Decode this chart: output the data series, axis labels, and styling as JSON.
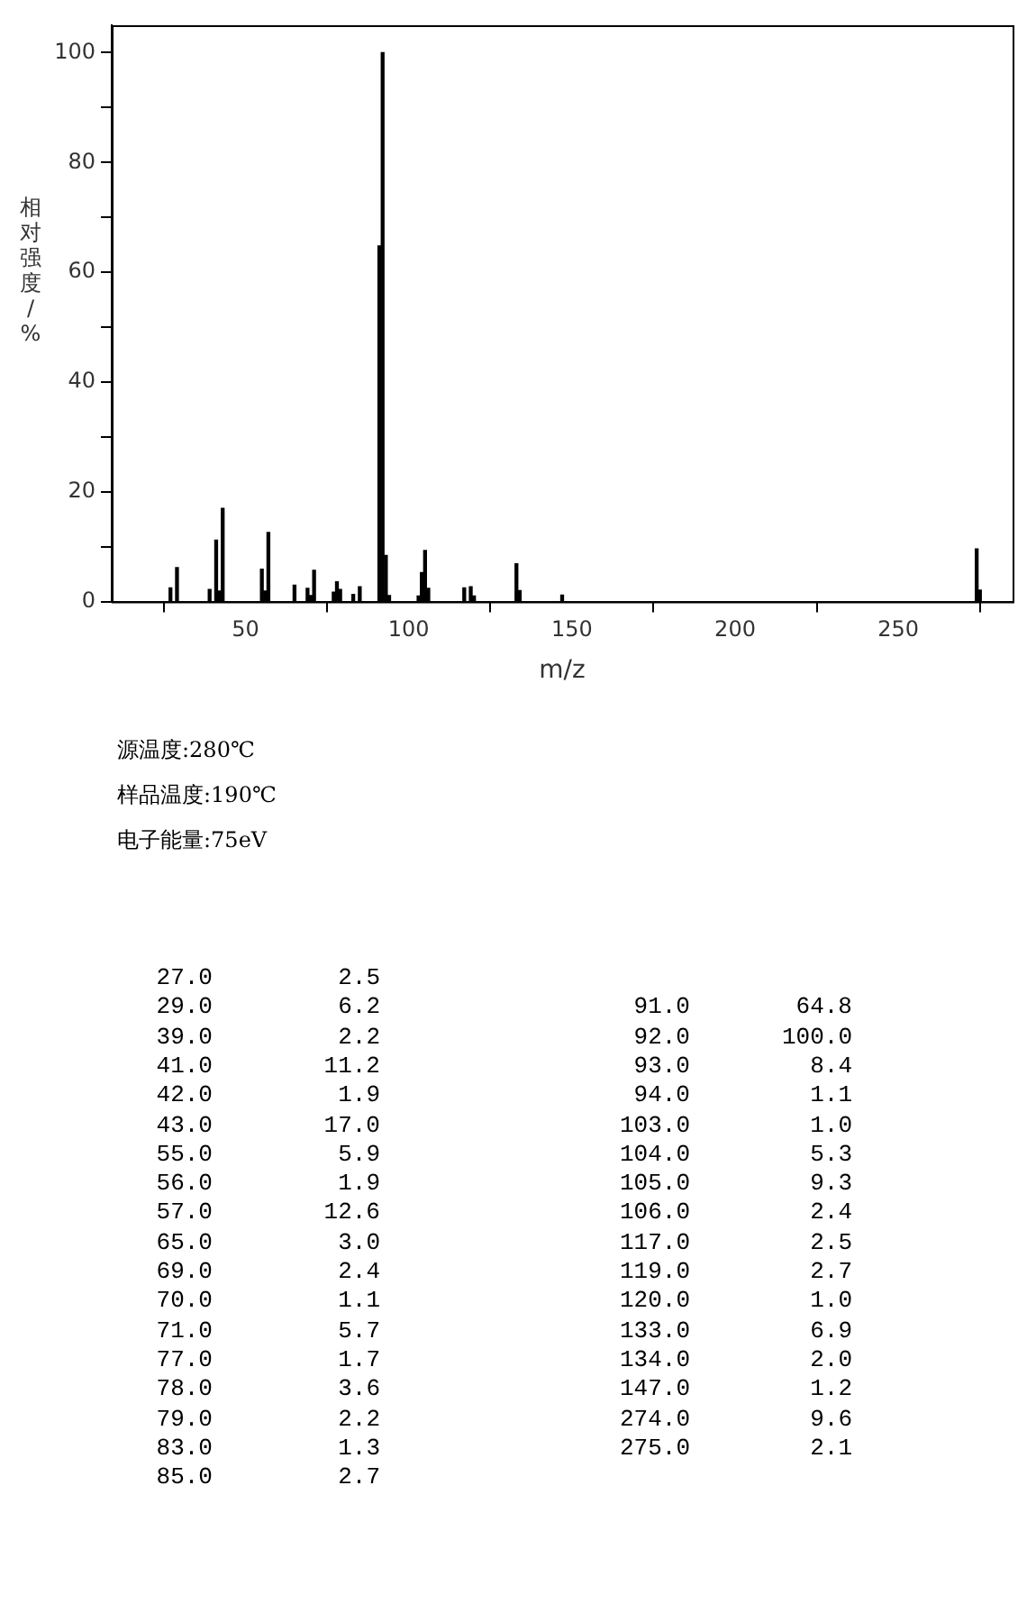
{
  "chart_data": [
    {
      "type": "bar",
      "xlabel": "m/z",
      "ylabel": "相对强度/%",
      "x": [
        27,
        29,
        39,
        41,
        42,
        43,
        55,
        56,
        57,
        65,
        69,
        70,
        71,
        77,
        78,
        79,
        83,
        85,
        91,
        92,
        93,
        94,
        103,
        104,
        105,
        106,
        117,
        119,
        120,
        133,
        134,
        147,
        274,
        275
      ],
      "values": [
        2.5,
        6.2,
        2.2,
        11.2,
        1.9,
        17.0,
        5.9,
        1.9,
        12.6,
        3.0,
        2.4,
        1.1,
        5.7,
        1.7,
        3.6,
        2.2,
        1.3,
        2.7,
        64.8,
        100.0,
        8.4,
        1.1,
        1.0,
        5.3,
        9.3,
        2.4,
        2.5,
        2.7,
        1.0,
        6.9,
        2.0,
        1.2,
        9.6,
        2.1
      ],
      "color": "#000000",
      "xlim": [
        9,
        285
      ],
      "xticks": [
        50,
        100,
        150,
        200,
        250
      ],
      "ylim": [
        0,
        105
      ],
      "yticks": [
        0,
        {
          "value": 10,
          "label": null
        },
        20,
        {
          "value": 30,
          "label": null
        },
        40,
        {
          "value": 50,
          "label": null
        },
        60,
        {
          "value": 70,
          "label": null
        },
        80,
        {
          "value": 90,
          "label": null
        },
        100
      ],
      "annotations": [
        "源温度:280℃",
        "样品温度:190℃",
        "电子能量:75eV"
      ]
    },
    {
      "type": "other",
      "annotations": [
        "27.0",
        "2.5",
        "29.0",
        "6.2",
        "39.0",
        "2.2",
        "41.0",
        "11.2",
        "42.0",
        "1.9",
        "43.0",
        "17.0",
        "55.0",
        "5.9",
        "56.0",
        "1.9",
        "57.0",
        "12.6",
        "65.0",
        "3.0",
        "69.0",
        "2.4",
        "70.0",
        "1.1",
        "71.0",
        "5.7",
        "77.0",
        "1.7",
        "78.0",
        "3.6",
        "79.0",
        "2.2",
        "83.0",
        "1.3",
        "85.0",
        "2.7",
        "91.0",
        "64.8",
        "92.0",
        "100.0",
        "93.0",
        "8.4",
        "94.0",
        "1.1",
        "103.0",
        "1.0",
        "104.0",
        "5.3",
        "105.0",
        "9.3",
        "106.0",
        "2.4",
        "117.0",
        "2.5",
        "119.0",
        "2.7",
        "120.0",
        "1.0",
        "133.0",
        "6.9",
        "134.0",
        "2.0",
        "147.0",
        "1.2",
        "274.0",
        "9.6",
        "275.0",
        "2.1"
      ]
    }
  ]
}
